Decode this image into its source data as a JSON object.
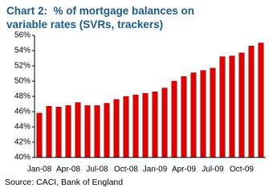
{
  "chart_data": {
    "type": "bar",
    "title": "Chart 2:  % of mortgage balances on variable rates (SVRs, trackers)",
    "source": "Source: CACI, Bank of England",
    "categories": [
      "Jan-08",
      null,
      null,
      "Apr-08",
      null,
      null,
      "Jul-08",
      null,
      null,
      "Oct-08",
      null,
      null,
      "Jan-09",
      null,
      null,
      "Apr-09",
      null,
      null,
      "Jul-09",
      null,
      null,
      "Oct-09",
      null,
      null
    ],
    "values": [
      45.8,
      46.7,
      46.6,
      46.8,
      47.2,
      46.8,
      46.8,
      47.1,
      47.6,
      48.0,
      48.2,
      48.4,
      48.6,
      49.1,
      50.0,
      50.6,
      51.1,
      51.4,
      51.7,
      53.2,
      53.3,
      53.7,
      54.6,
      55.0
    ],
    "color": "#e00000",
    "ylim": [
      40,
      56
    ],
    "yticks": [
      {
        "value": 40,
        "label": "40%"
      },
      {
        "value": 42,
        "label": "42%"
      },
      {
        "value": 44,
        "label": "44%"
      },
      {
        "value": 46,
        "label": "46%"
      },
      {
        "value": 48,
        "label": "48%"
      },
      {
        "value": 50,
        "label": "50%"
      },
      {
        "value": 52,
        "label": "52%"
      },
      {
        "value": 54,
        "label": "54%"
      },
      {
        "value": 56,
        "label": "56%"
      }
    ],
    "grid": false
  }
}
